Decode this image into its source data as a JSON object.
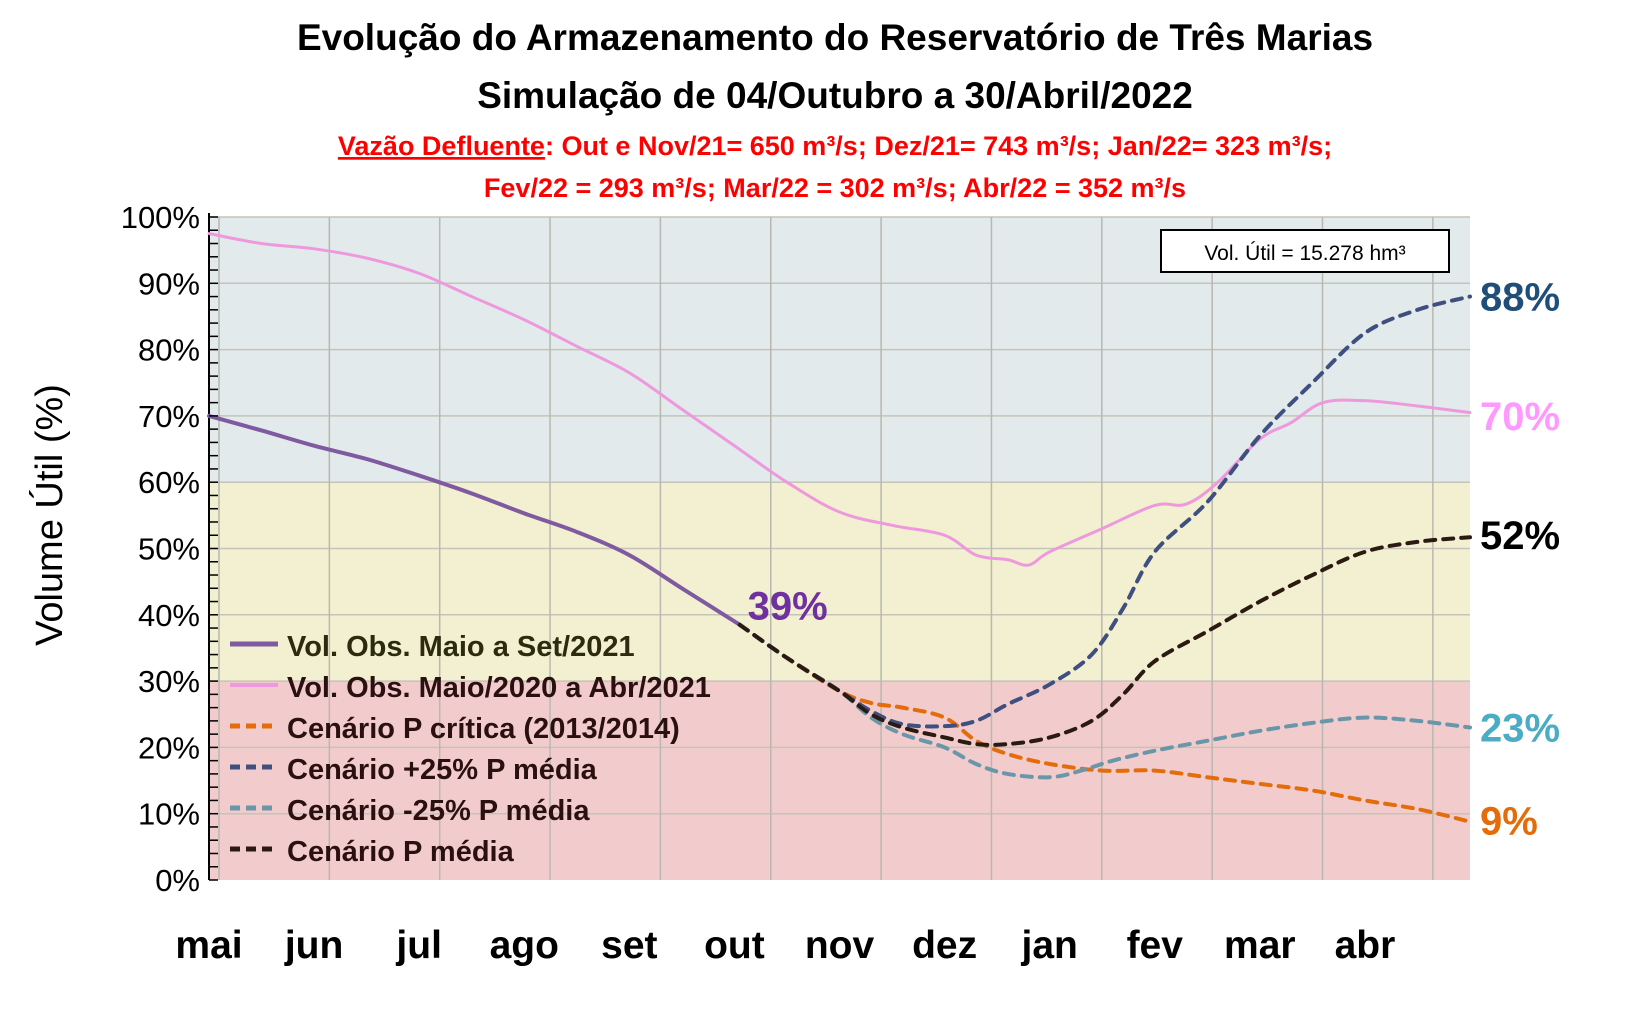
{
  "chart_data": {
    "type": "line",
    "title": "Evolução do Armazenamento do Reservatório de Três Marias",
    "subtitle": "Simulação de 04/Outubro a 30/Abril/2022",
    "note_line1_label": "Vazão Defluente",
    "note_line1_text": ": Out e Nov/21= 650 m³/s; Dez/21= 743 m³/s; Jan/22= 323 m³/s;",
    "note_line2_text": "Fev/22 = 293 m³/s; Mar/22 = 302 m³/s; Abr/22 = 352 m³/s",
    "info_box": "Vol. Útil  = 15.278 hm³",
    "ylabel": "Volume  Útil (%)",
    "xlabel": "",
    "ylim": [
      0,
      100
    ],
    "yticks": [
      "0%",
      "10%",
      "20%",
      "30%",
      "40%",
      "50%",
      "60%",
      "70%",
      "80%",
      "90%",
      "100%"
    ],
    "categories": [
      "mai",
      "jun",
      "jul",
      "ago",
      "set",
      "out",
      "nov",
      "dez",
      "jan",
      "fev",
      "mar",
      "abr"
    ],
    "x_unit": "months since start of May (0 = 1 May, 12 = 30 April)",
    "grid": true,
    "legend_position": "bottom-left",
    "bands": [
      {
        "from": 0,
        "to": 30,
        "color": "#f2cccc"
      },
      {
        "from": 30,
        "to": 60,
        "color": "#f2f0d0"
      },
      {
        "from": 60,
        "to": 100,
        "color": "#e2eaeb"
      }
    ],
    "series": [
      {
        "name": "Vol. Obs. Maio a Set/2021",
        "color": "#7f5aa0",
        "dash": false,
        "width": 4,
        "x": [
          0,
          0.5,
          1,
          1.5,
          2,
          2.5,
          3,
          3.5,
          4,
          4.5,
          5.05
        ],
        "y": [
          70,
          67.8,
          65.5,
          63.5,
          61,
          58.3,
          55.3,
          52.5,
          49,
          44,
          38.5
        ]
      },
      {
        "name": "Vol. Obs. Maio/2020 a Abr/2021",
        "color": "#ee99dd",
        "dash": false,
        "width": 3,
        "x": [
          0,
          0.5,
          1,
          1.5,
          2,
          2.5,
          3,
          3.5,
          4,
          4.5,
          5,
          5.5,
          6,
          6.5,
          7,
          7.3,
          7.6,
          7.8,
          8,
          8.5,
          9,
          9.3,
          9.6,
          10,
          10.3,
          10.6,
          11,
          11.5,
          12
        ],
        "y": [
          97.5,
          96,
          95.2,
          93.8,
          91.5,
          88,
          84.5,
          80.5,
          76.5,
          71,
          65.5,
          60,
          55.5,
          53.5,
          52,
          49,
          48.3,
          47.5,
          49.5,
          53,
          56.5,
          56.7,
          60,
          66.5,
          69,
          72,
          72.3,
          71.5,
          70.5
        ]
      },
      {
        "name": "Cenário P crítica (2013/2014)",
        "color": "#e46c0a",
        "dash": true,
        "width": 4,
        "x": [
          5.05,
          5.5,
          6,
          6.3,
          6.6,
          7,
          7.3,
          7.6,
          8,
          8.5,
          9,
          9.5,
          10,
          10.5,
          11,
          11.5,
          12
        ],
        "y": [
          38.5,
          33.5,
          28.5,
          26.7,
          26,
          24.5,
          21,
          19,
          17.5,
          16.5,
          16.5,
          15.5,
          14.5,
          13.5,
          12,
          10.7,
          8.8
        ]
      },
      {
        "name": "Cenário +25% P média",
        "color": "#3f4f7f",
        "dash": true,
        "width": 4,
        "x": [
          5.05,
          5.5,
          6,
          6.3,
          6.6,
          7,
          7.3,
          7.6,
          8,
          8.4,
          8.7,
          9,
          9.5,
          10,
          10.5,
          11,
          11.5,
          12
        ],
        "y": [
          38.5,
          33.5,
          28.5,
          25.5,
          23.5,
          23.2,
          24,
          26.5,
          29.5,
          34,
          41,
          49.5,
          57,
          67,
          75,
          82.5,
          86,
          88
        ]
      },
      {
        "name": "Cenário -25% P média",
        "color": "#6a96aa",
        "dash": true,
        "width": 4,
        "x": [
          5.05,
          5.5,
          6,
          6.3,
          6.6,
          7,
          7.3,
          7.6,
          8,
          8.3,
          8.6,
          9,
          9.5,
          10,
          10.5,
          11,
          11.5,
          12
        ],
        "y": [
          38.5,
          33.5,
          28.5,
          24.5,
          22,
          20,
          17.5,
          16,
          15.5,
          16.5,
          18,
          19.5,
          21,
          22.5,
          23.7,
          24.5,
          24,
          23
        ]
      },
      {
        "name": "Cenário P média",
        "color": "#2a1a12",
        "dash": true,
        "width": 4,
        "x": [
          5.05,
          5.5,
          6,
          6.3,
          6.6,
          7,
          7.3,
          7.6,
          8,
          8.4,
          8.7,
          9,
          9.5,
          10,
          10.5,
          11,
          11.5,
          12
        ],
        "y": [
          38.5,
          33.5,
          28.5,
          25,
          23,
          21.5,
          20.5,
          20.5,
          21.5,
          24,
          28,
          33,
          37.5,
          42,
          46,
          49.5,
          51,
          51.7
        ]
      }
    ],
    "annotations": [
      {
        "text": "39%",
        "color": "#7030a0",
        "x": 5.05,
        "y": 39
      },
      {
        "text": "88%",
        "color": "#1f4e79",
        "x": 12,
        "y": 88
      },
      {
        "text": "70%",
        "color": "#ff99ff",
        "x": 12,
        "y": 70
      },
      {
        "text": "52%",
        "color": "#000000",
        "x": 12,
        "y": 52
      },
      {
        "text": "23%",
        "color": "#4bacc6",
        "x": 12,
        "y": 23
      },
      {
        "text": "9%",
        "color": "#e46c0a",
        "x": 12,
        "y": 9
      }
    ]
  }
}
